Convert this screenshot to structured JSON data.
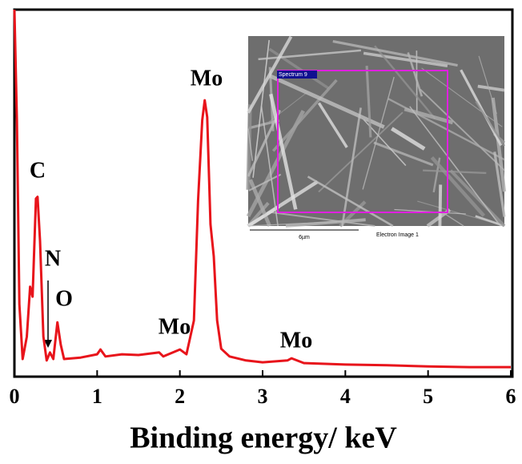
{
  "chart_data": {
    "type": "line",
    "x_label": "Binding energy/ keV",
    "x": [
      0.0,
      0.03,
      0.06,
      0.1,
      0.15,
      0.19,
      0.22,
      0.26,
      0.28,
      0.31,
      0.35,
      0.39,
      0.43,
      0.47,
      0.52,
      0.56,
      0.6,
      0.8,
      1.0,
      1.04,
      1.1,
      1.3,
      1.5,
      1.75,
      1.8,
      2.0,
      2.08,
      2.17,
      2.22,
      2.27,
      2.3,
      2.33,
      2.37,
      2.41,
      2.45,
      2.5,
      2.6,
      2.8,
      3.0,
      3.3,
      3.35,
      3.5,
      4.0,
      4.5,
      5.0,
      5.5,
      6.0
    ],
    "series": [
      {
        "color": "#e8141b",
        "values": [
          100,
          70,
          19.7,
          4.8,
          10.9,
          24.5,
          21.8,
          48.5,
          49,
          37,
          10.9,
          4.4,
          6.6,
          4.8,
          14.8,
          8.7,
          4.8,
          5.2,
          6.1,
          7.4,
          5.5,
          6.1,
          5.9,
          6.6,
          5.5,
          7.4,
          6.1,
          15.3,
          48,
          69.9,
          75.3,
          70.7,
          41.5,
          32.8,
          15.3,
          7.6,
          5.5,
          4.4,
          3.9,
          4.4,
          5,
          3.7,
          3.3,
          3.1,
          2.8,
          2.6,
          2.6
        ]
      }
    ],
    "xlim": [
      0,
      6
    ],
    "xticks": [
      0,
      1,
      2,
      3,
      4,
      5,
      6
    ],
    "ylim": [
      0,
      100
    ],
    "annotations": [
      "C",
      "N",
      "O",
      "Mo",
      "Mo",
      "Mo"
    ],
    "inset": {
      "spectrum_label": "Spectrum 9",
      "scale_label": "6µm",
      "caption": "Electron Image 1"
    }
  }
}
